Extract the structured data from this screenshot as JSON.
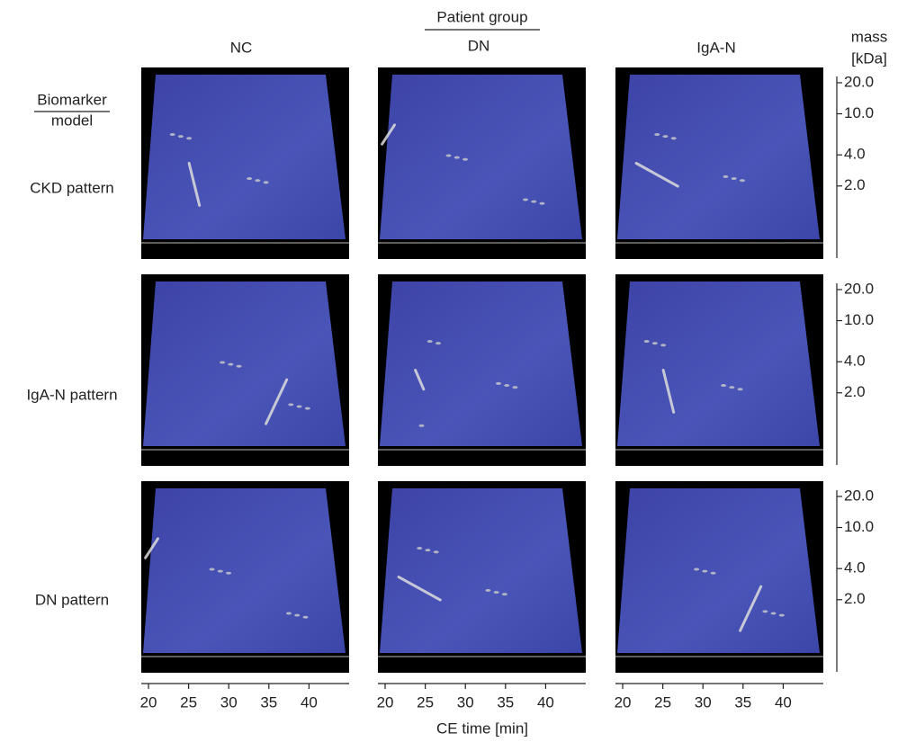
{
  "figure": {
    "column_title": "Patient group",
    "columns": [
      "NC",
      "DN",
      "IgA-N"
    ],
    "row_title": [
      "Biomarker",
      "model"
    ],
    "rows": [
      "CKD pattern",
      "IgA-N pattern",
      "DN pattern"
    ],
    "x_axis": {
      "label": "CE time [min]",
      "lim": [
        19.1,
        45
      ],
      "ticks": [
        20,
        25,
        30,
        35,
        40
      ]
    },
    "y_axis": {
      "label": [
        "mass",
        "[kDa]"
      ],
      "log": true,
      "lim": [
        0.4,
        23
      ],
      "ticks": [
        {
          "value": 20,
          "label": "20.0"
        },
        {
          "value": 10,
          "label": "10.0"
        },
        {
          "value": 4,
          "label": "4.0"
        },
        {
          "value": 2,
          "label": "2.0"
        }
      ]
    }
  }
}
